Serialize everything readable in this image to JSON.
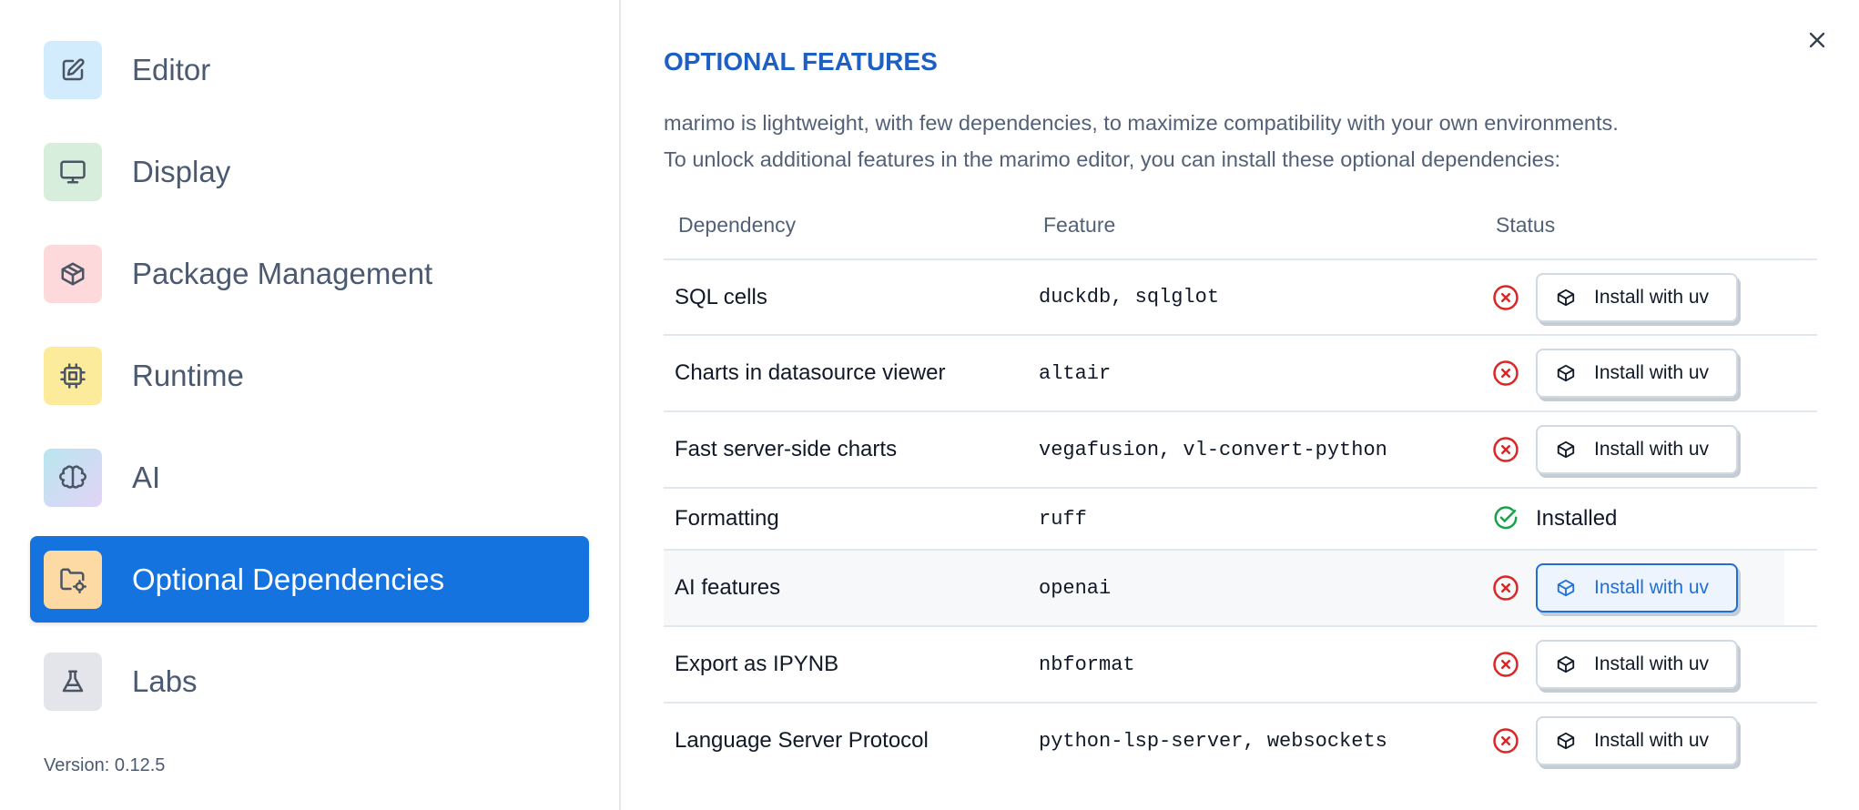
{
  "sidebar": {
    "items": [
      {
        "label": "Editor",
        "icon": "pencil-square-icon",
        "color": "#d2ecfd"
      },
      {
        "label": "Display",
        "icon": "monitor-icon",
        "color": "#d6eedb"
      },
      {
        "label": "Package Management",
        "icon": "package-icon",
        "color": "#fdd9dc"
      },
      {
        "label": "Runtime",
        "icon": "cpu-icon",
        "color": "#fdeb9c"
      },
      {
        "label": "AI",
        "icon": "brain-icon",
        "color": "#c9d8f1"
      },
      {
        "label": "Optional Dependencies",
        "icon": "folder-cog-icon",
        "color": "#fdd9a4",
        "active": true
      },
      {
        "label": "Labs",
        "icon": "flask-icon",
        "color": "#e4e5ea"
      }
    ],
    "version": "Version: 0.12.5"
  },
  "main": {
    "title": "OPTIONAL FEATURES",
    "description_line1": "marimo is lightweight, with few dependencies, to maximize compatibility with your own environments.",
    "description_line2": "To unlock additional features in the marimo editor, you can install these optional dependencies:",
    "table": {
      "headers": [
        "Dependency",
        "Feature",
        "Status"
      ],
      "rows": [
        {
          "dependency": "SQL cells",
          "feature": "duckdb, sqlglot",
          "status": "missing",
          "action": "Install with uv"
        },
        {
          "dependency": "Charts in datasource viewer",
          "feature": "altair",
          "status": "missing",
          "action": "Install with uv"
        },
        {
          "dependency": "Fast server-side charts",
          "feature": "vegafusion, vl-convert-python",
          "status": "missing",
          "action": "Install with uv"
        },
        {
          "dependency": "Formatting",
          "feature": "ruff",
          "status": "installed",
          "status_label": "Installed"
        },
        {
          "dependency": "AI features",
          "feature": "openai",
          "status": "missing",
          "action": "Install with uv",
          "hovered": true
        },
        {
          "dependency": "Export as IPYNB",
          "feature": "nbformat",
          "status": "missing",
          "action": "Install with uv"
        },
        {
          "dependency": "Language Server Protocol",
          "feature": "python-lsp-server, websockets",
          "status": "missing",
          "action": "Install with uv"
        }
      ]
    }
  },
  "colors": {
    "accent": "#1573e0",
    "title": "#1e5fc4",
    "error": "#dc2626",
    "success": "#16a34a"
  }
}
